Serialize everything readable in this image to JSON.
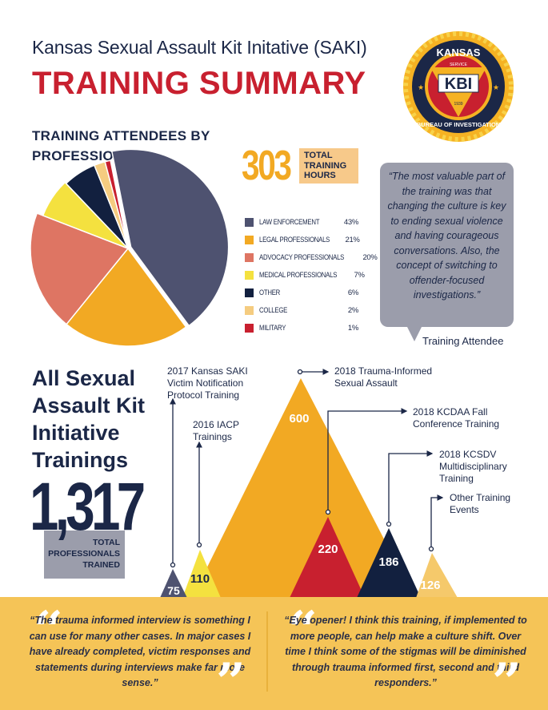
{
  "header": {
    "subtitle": "Kansas Sexual Assault Kit Initative (SAKI)",
    "title": "TRAINING SUMMARY"
  },
  "logo": {
    "top_text": "KANSAS",
    "bottom_text": "BUREAU OF INVESTIGATION",
    "center_text": "KBI",
    "service": "SERVICE",
    "dedication": "DEDICATION",
    "integrity": "INTEGRITY",
    "year": "1939",
    "colors": {
      "ring": "#1b2747",
      "burst": "#f5b223",
      "inner": "#c8202f",
      "triangle": "#f5b223"
    }
  },
  "pie_section": {
    "title_line1": "TRAINING ATTENDEES BY",
    "title_line2": "PROFESSION"
  },
  "hours": {
    "value": "303",
    "label_line1": "TOTAL",
    "label_line2": "TRAINING",
    "label_line3": "HOURS"
  },
  "chart_data": [
    {
      "type": "pie",
      "title": "TRAINING ATTENDEES BY PROFESSION",
      "categories": [
        "LAW ENFORCEMENT",
        "LEGAL PROFESSIONALS",
        "ADVOCACY PROFESSIONALS",
        "MEDICAL PROFESSIONALS",
        "OTHER",
        "COLLEGE",
        "MILITARY"
      ],
      "values": [
        43,
        21,
        20,
        7,
        6,
        2,
        1
      ],
      "labels": [
        "43%",
        "21%",
        "20%",
        "7%",
        "6%",
        "2%",
        "1%"
      ],
      "colors": [
        "#4e5270",
        "#f2a923",
        "#de7563",
        "#f4e13f",
        "#12203f",
        "#f5cc80",
        "#c8202f"
      ],
      "legend_position": "right"
    },
    {
      "type": "area",
      "title": "All Sexual Assault Kit Initiative Trainings",
      "categories": [
        "2017 Kansas SAKI Victim Notification Protocol Training",
        "2016 IACP Trainings",
        "2018 Trauma-Informed Sexual Assault",
        "2018 KCDAA Fall Conference Training",
        "2018 KCSDV Multidisciplinary Training",
        "Other Training Events"
      ],
      "values": [
        75,
        110,
        600,
        220,
        186,
        126
      ],
      "colors": [
        "#4e5270",
        "#f4e13f",
        "#f2a923",
        "#c8202f",
        "#12203f",
        "#f5c96b"
      ],
      "total": 1317
    }
  ],
  "legend": [
    {
      "label": "LAW ENFORCEMENT",
      "pct": "43%",
      "color": "#4e5270"
    },
    {
      "label": "LEGAL PROFESSIONALS",
      "pct": "21%",
      "color": "#f2a923"
    },
    {
      "label": "ADVOCACY PROFESSIONALS",
      "pct": "20%",
      "color": "#de7563"
    },
    {
      "label": "MEDICAL PROFESSIONALS",
      "pct": "7%",
      "color": "#f4e13f"
    },
    {
      "label": "OTHER",
      "pct": "6%",
      "color": "#12203f"
    },
    {
      "label": "COLLEGE",
      "pct": "2%",
      "color": "#f5cc80"
    },
    {
      "label": "MILITARY",
      "pct": "1%",
      "color": "#c8202f"
    }
  ],
  "quote_top": {
    "text": "“The most valuable part of the training was that changing the culture is key to ending sexual violence and having courageous conversations. Also, the concept of switching to offender-focused investigations.”",
    "attribution": "Training Attendee"
  },
  "trainings": {
    "title": "All Sexual Assault Kit Initiative Trainings",
    "total": "1,317",
    "total_label_line1": "TOTAL",
    "total_label_line2": "PROFESSIONALS",
    "total_label_line3": "TRAINED",
    "items": [
      {
        "value": "75",
        "label_line1": "2017 Kansas SAKI",
        "label_line2": "Victim Notification",
        "label_line3": "Protocol Training"
      },
      {
        "value": "110",
        "label_line1": "2016 IACP",
        "label_line2": "Trainings"
      },
      {
        "value": "600",
        "label_line1": "2018 Trauma-Informed",
        "label_line2": "Sexual Assault"
      },
      {
        "value": "220",
        "label_line1": "2018 KCDAA Fall",
        "label_line2": "Conference Training"
      },
      {
        "value": "186",
        "label_line1": "2018 KCSDV",
        "label_line2": "Multidisciplinary",
        "label_line3": "Training"
      },
      {
        "value": "126",
        "label_line1": "Other Training",
        "label_line2": "Events"
      }
    ]
  },
  "bottom_quotes": {
    "left": "“The trauma informed interview is something I can use for many other cases. In major cases I have already completed, victim responses and statements during interviews make far more sense.”",
    "right": "“Eye opener! I think this training, if implemented to more people, can help make a culture shift. Over time I think some of the stigmas will be diminished through trauma informed first, second and third responders.”",
    "open_mark": "“",
    "close_mark": "”"
  }
}
